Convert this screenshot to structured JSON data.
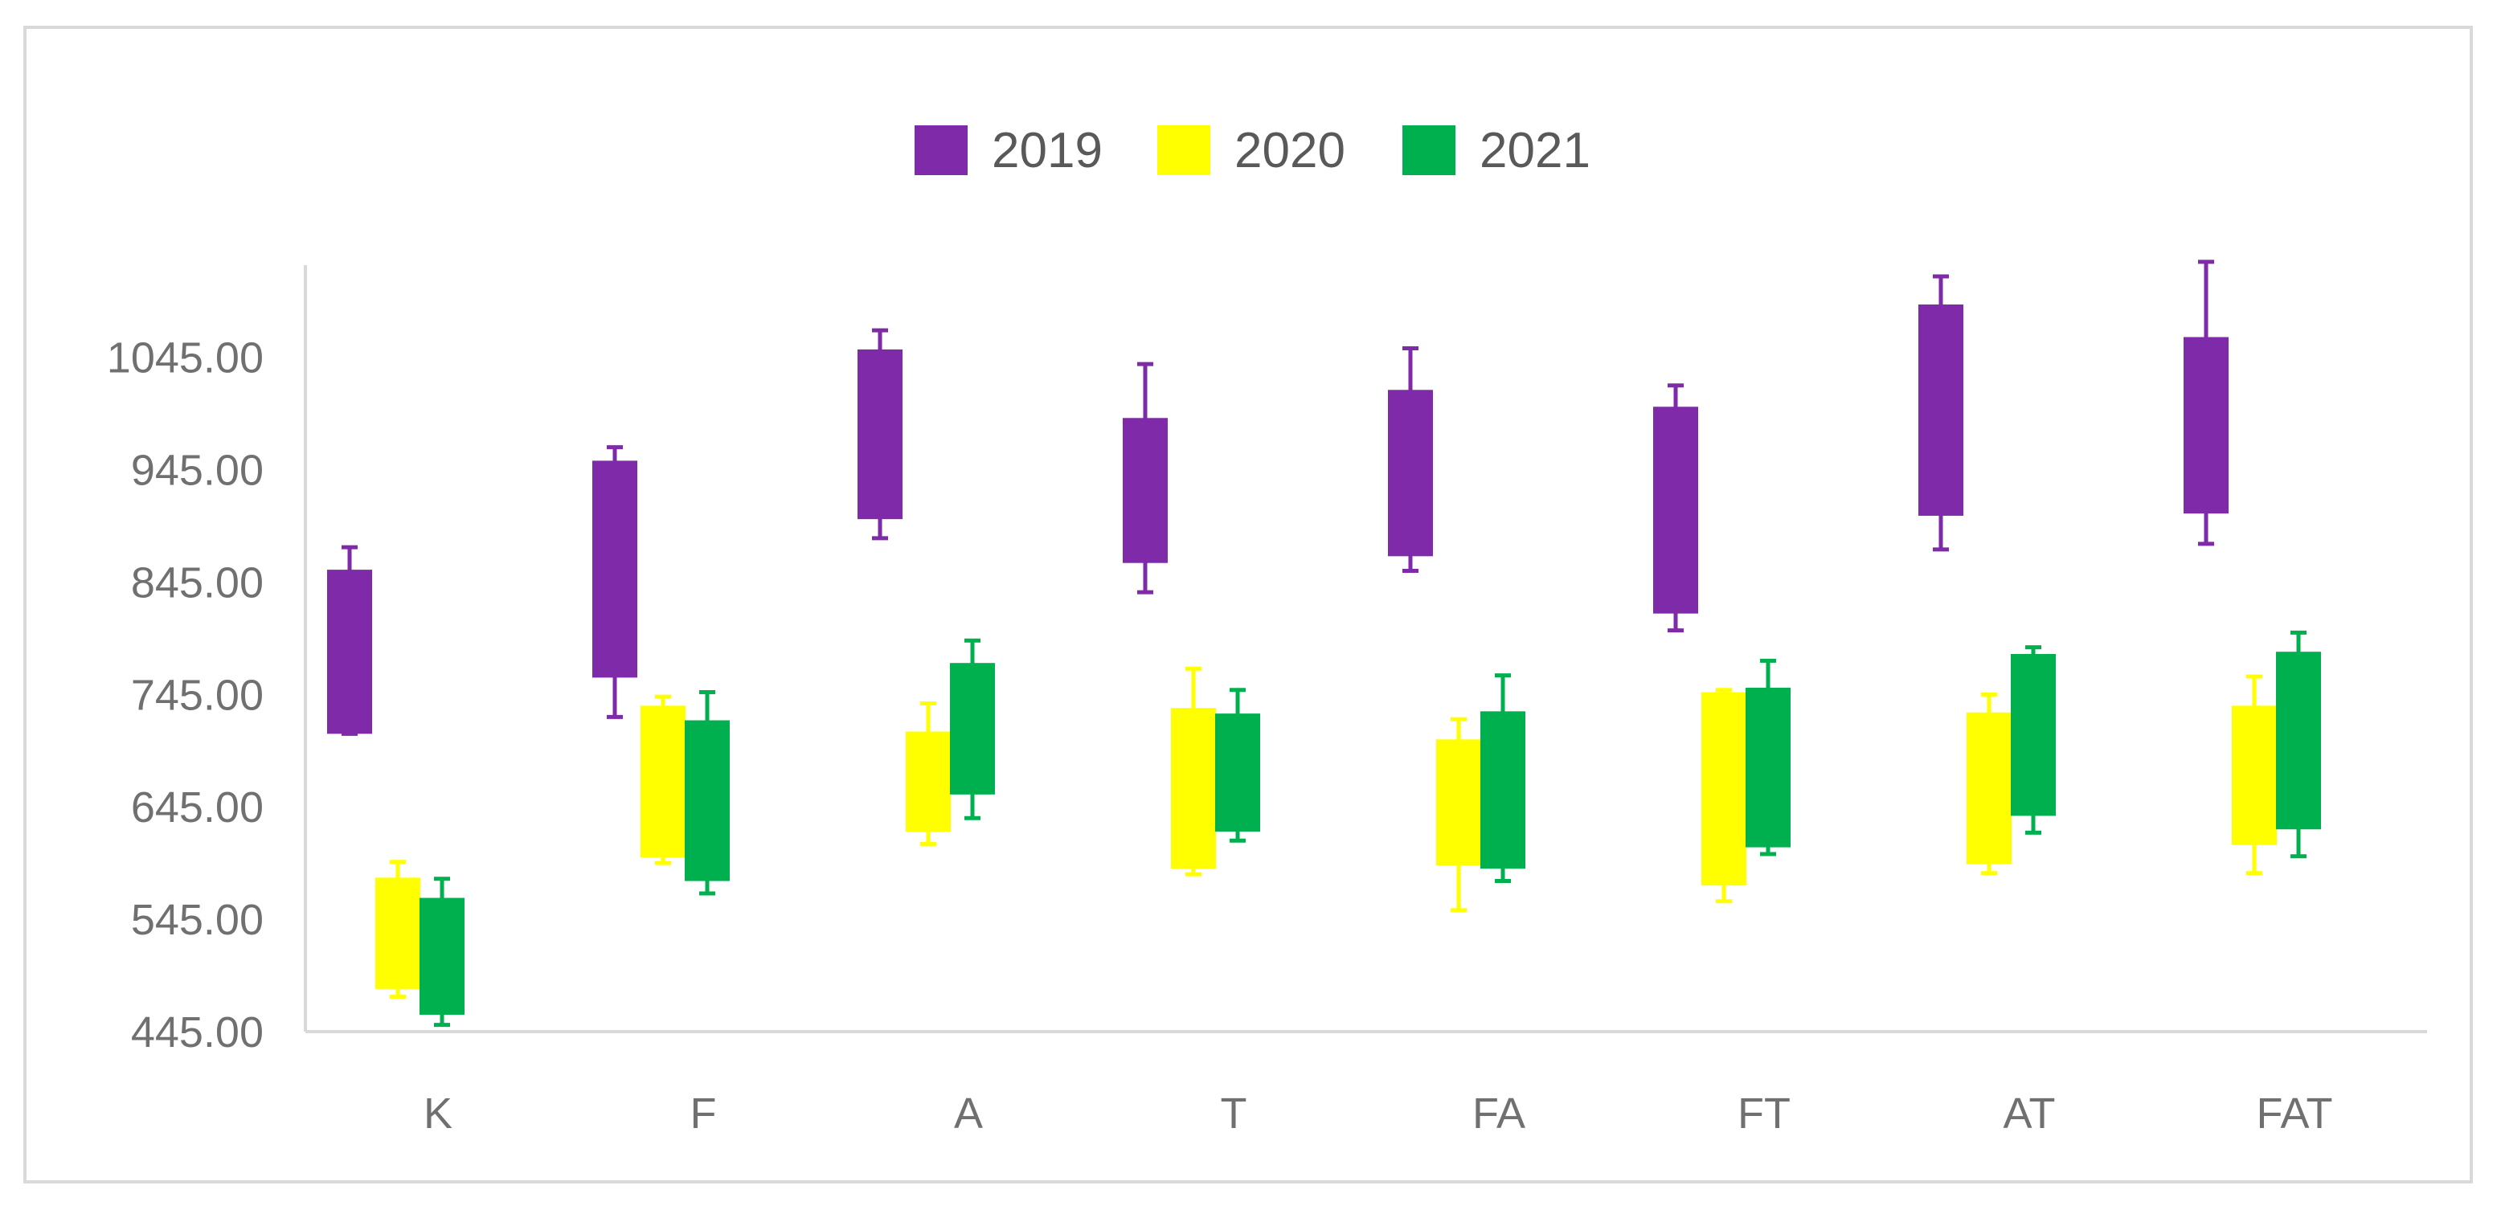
{
  "chart_data": {
    "type": "floating-bar-with-error-bars",
    "title": "",
    "xlabel": "",
    "ylabel": "",
    "categories": [
      "K",
      "F",
      "A",
      "T",
      "FA",
      "FT",
      "AT",
      "FAT"
    ],
    "y_ticks": [
      "445.00",
      "545.00",
      "645.00",
      "745.00",
      "845.00",
      "945.00",
      "1045.00"
    ],
    "ylim": [
      445,
      1150
    ],
    "grid": false,
    "legend_position": "top-center",
    "series": [
      {
        "name": "2019",
        "color": "#7f2aa8",
        "points": [
          {
            "low": 710,
            "high": 856,
            "err_low": 710,
            "err_high": 876
          },
          {
            "low": 760,
            "high": 953,
            "err_low": 725,
            "err_high": 965
          },
          {
            "low": 901,
            "high": 1052,
            "err_low": 884,
            "err_high": 1069
          },
          {
            "low": 862,
            "high": 991,
            "err_low": 836,
            "err_high": 1039
          },
          {
            "low": 868,
            "high": 1016,
            "err_low": 855,
            "err_high": 1053
          },
          {
            "low": 817,
            "high": 1001,
            "err_low": 802,
            "err_high": 1020
          },
          {
            "low": 904,
            "high": 1092,
            "err_low": 874,
            "err_high": 1117
          },
          {
            "low": 906,
            "high": 1063,
            "err_low": 879,
            "err_high": 1130
          }
        ]
      },
      {
        "name": "2020",
        "color": "#ffff00",
        "points": [
          {
            "low": 483,
            "high": 582,
            "err_low": 476,
            "err_high": 596
          },
          {
            "low": 600,
            "high": 735,
            "err_low": 595,
            "err_high": 743
          },
          {
            "low": 623,
            "high": 712,
            "err_low": 612,
            "err_high": 737
          },
          {
            "low": 590,
            "high": 733,
            "err_low": 585,
            "err_high": 768
          },
          {
            "low": 593,
            "high": 705,
            "err_low": 553,
            "err_high": 723
          },
          {
            "low": 575,
            "high": 747,
            "err_low": 561,
            "err_high": 749
          },
          {
            "low": 594,
            "high": 729,
            "err_low": 586,
            "err_high": 745
          },
          {
            "low": 611,
            "high": 735,
            "err_low": 586,
            "err_high": 761
          }
        ]
      },
      {
        "name": "2021",
        "color": "#00b04f",
        "points": [
          {
            "low": 460,
            "high": 564,
            "err_low": 451,
            "err_high": 581
          },
          {
            "low": 579,
            "high": 722,
            "err_low": 568,
            "err_high": 747
          },
          {
            "low": 656,
            "high": 773,
            "err_low": 635,
            "err_high": 793
          },
          {
            "low": 623,
            "high": 728,
            "err_low": 615,
            "err_high": 749
          },
          {
            "low": 590,
            "high": 730,
            "err_low": 579,
            "err_high": 762
          },
          {
            "low": 609,
            "high": 751,
            "err_low": 603,
            "err_high": 775
          },
          {
            "low": 637,
            "high": 781,
            "err_low": 622,
            "err_high": 787
          },
          {
            "low": 625,
            "high": 783,
            "err_low": 601,
            "err_high": 800
          }
        ]
      }
    ]
  }
}
